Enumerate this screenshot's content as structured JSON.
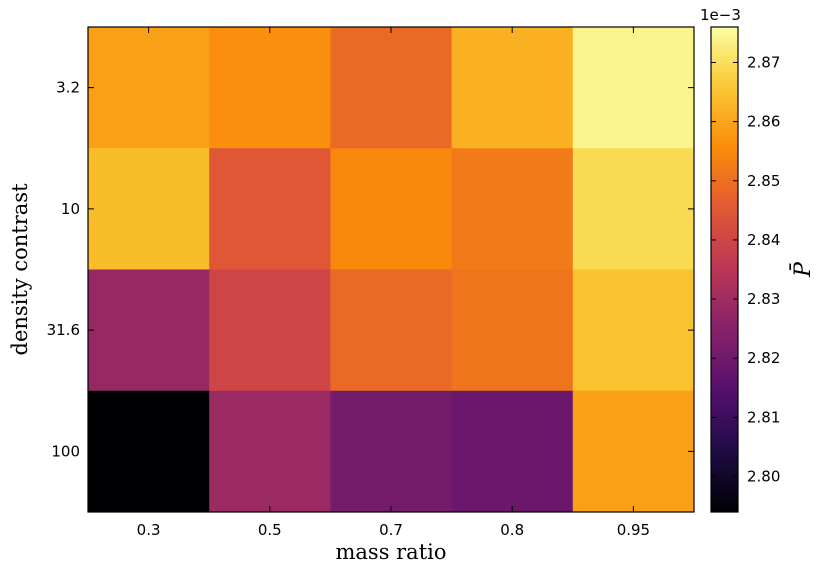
{
  "chart_data": {
    "type": "heatmap",
    "xlabel": "mass ratio",
    "ylabel": "density contrast",
    "x_categories": [
      "0.3",
      "0.5",
      "0.7",
      "0.8",
      "0.95"
    ],
    "y_categories": [
      "3.2",
      "10",
      "31.6",
      "100"
    ],
    "values": [
      [
        2.859,
        2.856,
        2.849,
        2.862,
        2.874
      ],
      [
        2.864,
        2.845,
        2.855,
        2.852,
        2.869
      ],
      [
        2.828,
        2.84,
        2.849,
        2.851,
        2.865
      ],
      [
        2.794,
        2.829,
        2.821,
        2.819,
        2.859
      ]
    ],
    "colorbar": {
      "label": "P̄",
      "offset_text": "1e−3",
      "range": [
        2.794,
        2.876
      ],
      "ticks": [
        "2.80",
        "2.81",
        "2.82",
        "2.83",
        "2.84",
        "2.85",
        "2.86",
        "2.87"
      ],
      "tick_values": [
        2.8,
        2.81,
        2.82,
        2.83,
        2.84,
        2.85,
        2.86,
        2.87
      ],
      "colormap": "inferno"
    }
  }
}
